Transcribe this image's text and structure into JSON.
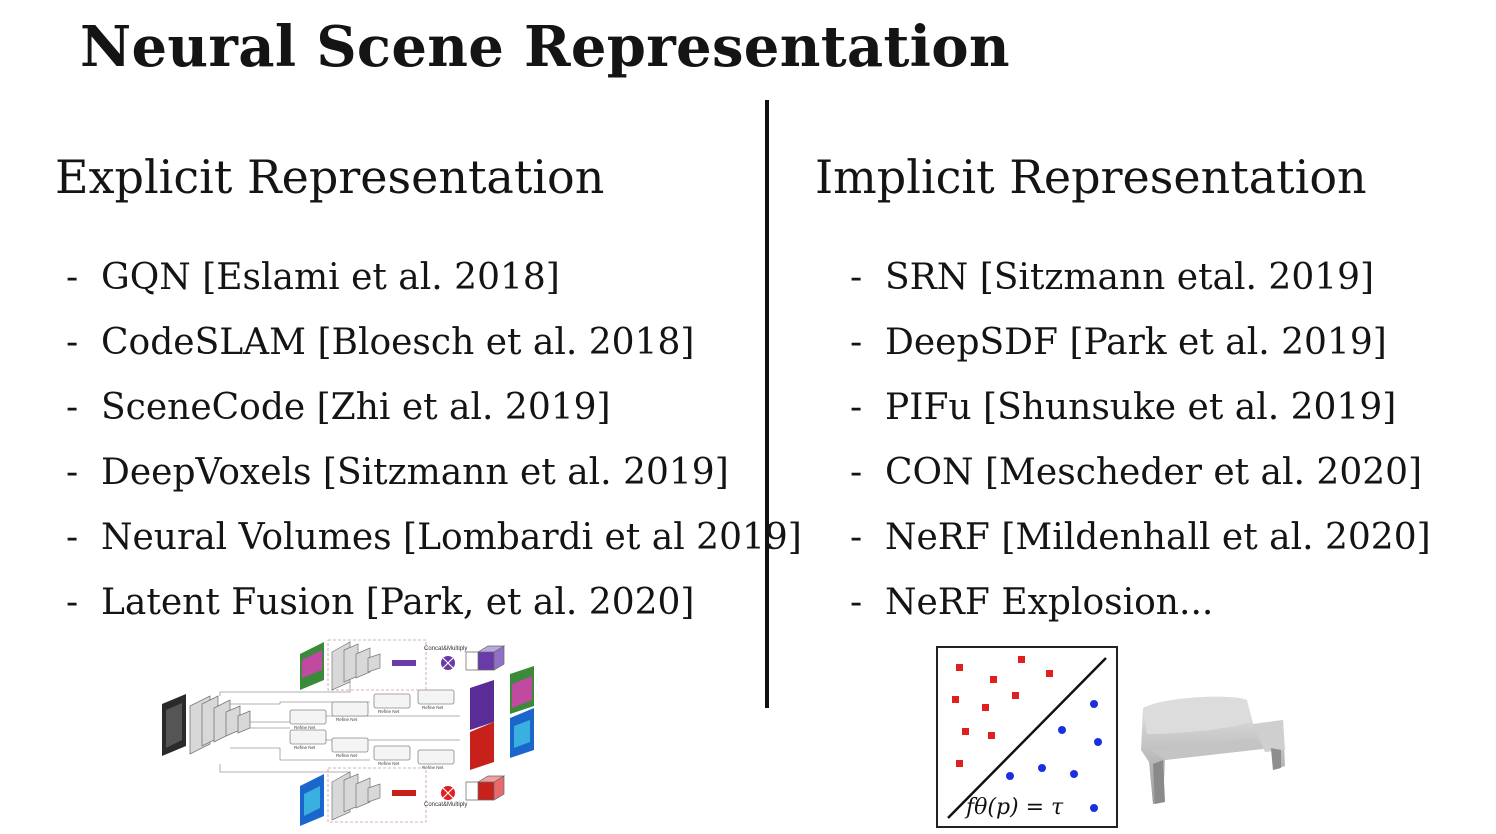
{
  "slide": {
    "title": "Neural Scene Representation",
    "explicit": {
      "heading": "Explicit Representation",
      "items": [
        "GQN [Eslami et al. 2018]",
        "CodeSLAM [Bloesch et al. 2018]",
        "SceneCode [Zhi et al. 2019]",
        "DeepVoxels [Sitzmann et al. 2019]",
        "Neural Volumes [Lombardi et al 2019]",
        "Latent Fusion [Park, et al. 2020]"
      ]
    },
    "implicit": {
      "heading": "Implicit Representation",
      "items": [
        "SRN [Sitzmann etal. 2019]",
        "DeepSDF [Park et al. 2019]",
        "PIFu [Shunsuke et al. 2019]",
        "CON [Mescheder et al. 2020]",
        "NeRF [Mildenhall et al. 2020]",
        "NeRF Explosion..."
      ]
    },
    "bullet": "-",
    "figure_labels": {
      "concat_top": "Concat&Multiply",
      "concat_bottom": "Concat&Multiply",
      "refine": "Refine Net",
      "equation": "fθ(p) = τ"
    },
    "colors": {
      "red_points": "#e02020",
      "blue_points": "#1a2fe0",
      "purple": "#6a3aa8",
      "red_block": "#c8201a"
    }
  }
}
